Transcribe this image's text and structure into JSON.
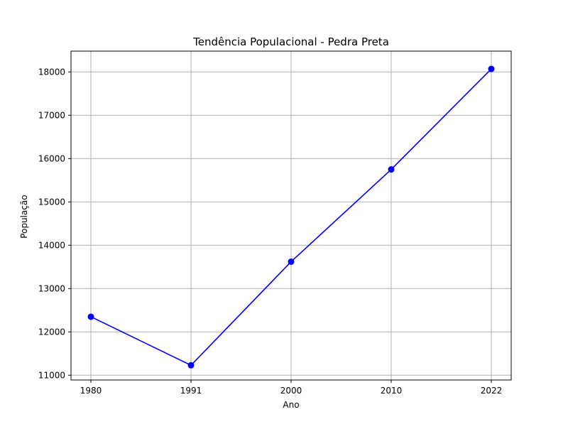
{
  "chart_data": {
    "type": "line",
    "title": "Tendência Populacional - Pedra Preta",
    "xlabel": "Ano",
    "ylabel": "População",
    "categories": [
      "1980",
      "1991",
      "2000",
      "2010",
      "2022"
    ],
    "series": [
      {
        "values": [
          12350,
          11230,
          13620,
          15750,
          18070
        ],
        "color": "#0000ff",
        "marker": "circle"
      }
    ],
    "y_ticks": [
      11000,
      12000,
      13000,
      14000,
      15000,
      16000,
      17000,
      18000
    ],
    "ylim": [
      10890,
      18480
    ],
    "grid": true,
    "legend": "none"
  },
  "colors": {
    "background": "#ffffff",
    "grid": "#b0b0b0",
    "axes": "#000000",
    "line": "#0000ff"
  }
}
